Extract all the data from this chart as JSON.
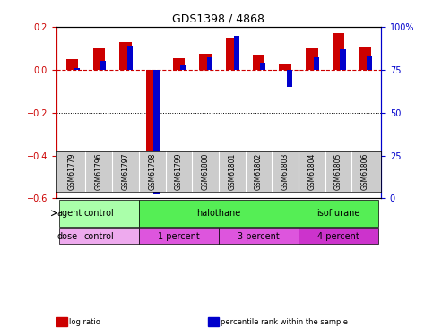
{
  "title": "GDS1398 / 4868",
  "samples": [
    "GSM61779",
    "GSM61796",
    "GSM61797",
    "GSM61798",
    "GSM61799",
    "GSM61800",
    "GSM61801",
    "GSM61802",
    "GSM61803",
    "GSM61804",
    "GSM61805",
    "GSM61806"
  ],
  "log_ratio": [
    0.05,
    0.1,
    0.13,
    -0.55,
    0.055,
    0.075,
    0.15,
    0.07,
    0.03,
    0.1,
    0.17,
    0.11
  ],
  "percentile_rank": [
    76,
    80,
    89,
    3,
    78,
    82,
    95,
    79,
    65,
    82,
    87,
    83
  ],
  "ylim_left": [
    -0.6,
    0.2
  ],
  "ylim_right": [
    0,
    100
  ],
  "yticks_left": [
    -0.6,
    -0.4,
    -0.2,
    0.0,
    0.2
  ],
  "yticks_right": [
    0,
    25,
    50,
    75,
    100
  ],
  "ytick_labels_right": [
    "0",
    "25",
    "50",
    "75",
    "100%"
  ],
  "bar_width": 0.3,
  "log_ratio_color": "#cc0000",
  "percentile_color": "#0000cc",
  "dashed_line_color": "#cc0000",
  "dotted_line_color": "#000000",
  "agent_groups": [
    {
      "label": "control",
      "start": 0,
      "end": 3,
      "color": "#99ee99"
    },
    {
      "label": "halothane",
      "start": 3,
      "end": 9,
      "color": "#44dd44"
    },
    {
      "label": "isoflurane",
      "start": 9,
      "end": 12,
      "color": "#44dd44"
    }
  ],
  "dose_groups": [
    {
      "label": "control",
      "start": 0,
      "end": 3,
      "color": "#dd99dd"
    },
    {
      "label": "1 percent",
      "start": 3,
      "end": 6,
      "color": "#cc66cc"
    },
    {
      "label": "3 percent",
      "start": 6,
      "end": 9,
      "color": "#cc66cc"
    },
    {
      "label": "4 percent",
      "start": 9,
      "end": 12,
      "color": "#cc44cc"
    }
  ],
  "legend_items": [
    {
      "label": "log ratio",
      "color": "#cc0000"
    },
    {
      "label": "percentile rank within the sample",
      "color": "#0000cc"
    }
  ],
  "background_color": "#ffffff",
  "plot_bg_color": "#ffffff",
  "grid_color": "#cccccc",
  "agent_label": "agent",
  "dose_label": "dose"
}
